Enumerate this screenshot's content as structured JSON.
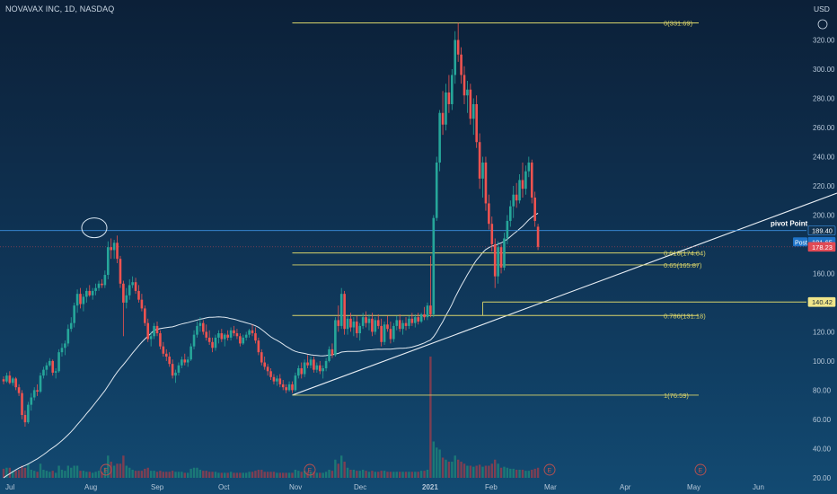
{
  "header": {
    "symbol": "NOVAVAX INC, 1D, NASDAQ",
    "currency": "USD"
  },
  "chart_data": {
    "type": "candlestick",
    "price_axis": {
      "ticks": [
        "320.00",
        "300.00",
        "280.00",
        "260.00",
        "240.00",
        "220.00",
        "200.00",
        "180.00",
        "160.00",
        "140.00",
        "120.00",
        "100.00",
        "80.00",
        "60.00",
        "40.00",
        "20.00"
      ],
      "range": [
        15,
        340
      ]
    },
    "time_axis": {
      "ticks": [
        "Jul",
        "Aug",
        "Sep",
        "Oct",
        "Nov",
        "Dec",
        "2021",
        "Feb",
        "Mar",
        "Apr",
        "May",
        "Jun"
      ]
    },
    "price_badges": [
      {
        "label": "189.40",
        "value": 189.4,
        "kind": "outline"
      },
      {
        "label": "181.65",
        "value": 181.65,
        "kind": "post",
        "prefix": "Post"
      },
      {
        "label": "178.23",
        "value": 178.23,
        "kind": "red"
      },
      {
        "label": "140.42",
        "value": 140.42,
        "kind": "yellow"
      }
    ],
    "fibonacci": [
      {
        "label": "0(331.69)",
        "value": 331.69
      },
      {
        "label": "0.618(174.04)",
        "value": 174.04
      },
      {
        "label": "0.65(165.87)",
        "value": 165.87
      },
      {
        "label": "0.786(131.18)",
        "value": 131.18
      },
      {
        "label": "1(76.59)",
        "value": 76.59
      }
    ],
    "annotations": [
      {
        "label": "pivot Point",
        "value": 189.4
      }
    ],
    "event_markers": [
      "E",
      "E",
      "E",
      "E"
    ],
    "candles": [
      {
        "o": 87.5,
        "h": 89.5,
        "l": 84,
        "c": 86,
        "v": 4.5
      },
      {
        "o": 86,
        "h": 92,
        "l": 85,
        "c": 90,
        "v": 5
      },
      {
        "o": 90,
        "h": 93,
        "l": 84,
        "c": 85,
        "v": 5
      },
      {
        "o": 85,
        "h": 89,
        "l": 83,
        "c": 88,
        "v": 3.5
      },
      {
        "o": 88,
        "h": 89,
        "l": 80,
        "c": 82,
        "v": 3.5
      },
      {
        "o": 82,
        "h": 84,
        "l": 76,
        "c": 78,
        "v": 4
      },
      {
        "o": 78,
        "h": 80,
        "l": 60,
        "c": 63,
        "v": 6
      },
      {
        "o": 63,
        "h": 66,
        "l": 55,
        "c": 58,
        "v": 5
      },
      {
        "o": 58,
        "h": 72,
        "l": 57,
        "c": 70,
        "v": 7
      },
      {
        "o": 70,
        "h": 78,
        "l": 66,
        "c": 75,
        "v": 4
      },
      {
        "o": 75,
        "h": 82,
        "l": 73,
        "c": 80,
        "v": 3.5
      },
      {
        "o": 80,
        "h": 84,
        "l": 76,
        "c": 79,
        "v": 3
      },
      {
        "o": 79,
        "h": 92,
        "l": 78,
        "c": 90,
        "v": 7
      },
      {
        "o": 90,
        "h": 96,
        "l": 88,
        "c": 94,
        "v": 4
      },
      {
        "o": 94,
        "h": 99,
        "l": 90,
        "c": 97,
        "v": 3.5
      },
      {
        "o": 97,
        "h": 102,
        "l": 96,
        "c": 100,
        "v": 3
      },
      {
        "o": 100,
        "h": 101,
        "l": 90,
        "c": 92,
        "v": 3.5
      },
      {
        "o": 92,
        "h": 95,
        "l": 88,
        "c": 93,
        "v": 2.5
      },
      {
        "o": 93,
        "h": 108,
        "l": 92,
        "c": 106,
        "v": 6
      },
      {
        "o": 106,
        "h": 112,
        "l": 103,
        "c": 109,
        "v": 4
      },
      {
        "o": 109,
        "h": 114,
        "l": 104,
        "c": 112,
        "v": 3.5
      },
      {
        "o": 112,
        "h": 125,
        "l": 110,
        "c": 122,
        "v": 6
      },
      {
        "o": 122,
        "h": 130,
        "l": 120,
        "c": 126,
        "v": 5
      },
      {
        "o": 126,
        "h": 140,
        "l": 123,
        "c": 138,
        "v": 6
      },
      {
        "o": 138,
        "h": 149,
        "l": 133,
        "c": 146,
        "v": 6
      },
      {
        "o": 146,
        "h": 150,
        "l": 136,
        "c": 139,
        "v": 3.5
      },
      {
        "o": 139,
        "h": 146,
        "l": 134,
        "c": 144,
        "v": 3.5
      },
      {
        "o": 144,
        "h": 150,
        "l": 140,
        "c": 148,
        "v": 3
      },
      {
        "o": 148,
        "h": 152,
        "l": 144,
        "c": 145,
        "v": 3
      },
      {
        "o": 145,
        "h": 150,
        "l": 142,
        "c": 148,
        "v": 2.5
      },
      {
        "o": 148,
        "h": 153,
        "l": 145,
        "c": 150,
        "v": 3
      },
      {
        "o": 150,
        "h": 155,
        "l": 148,
        "c": 153,
        "v": 3.5
      },
      {
        "o": 153,
        "h": 156,
        "l": 150,
        "c": 152,
        "v": 3
      },
      {
        "o": 152,
        "h": 162,
        "l": 150,
        "c": 159,
        "v": 5
      },
      {
        "o": 159,
        "h": 182,
        "l": 156,
        "c": 178,
        "v": 11
      },
      {
        "o": 178,
        "h": 184,
        "l": 170,
        "c": 176,
        "v": 8
      },
      {
        "o": 176,
        "h": 183,
        "l": 170,
        "c": 181,
        "v": 6
      },
      {
        "o": 181,
        "h": 186,
        "l": 167,
        "c": 170,
        "v": 7
      },
      {
        "o": 170,
        "h": 172,
        "l": 150,
        "c": 153,
        "v": 7
      },
      {
        "o": 153,
        "h": 155,
        "l": 117,
        "c": 140,
        "v": 11
      },
      {
        "o": 140,
        "h": 150,
        "l": 136,
        "c": 145,
        "v": 6
      },
      {
        "o": 145,
        "h": 156,
        "l": 142,
        "c": 152,
        "v": 5
      },
      {
        "o": 152,
        "h": 158,
        "l": 150,
        "c": 154,
        "v": 4
      },
      {
        "o": 154,
        "h": 157,
        "l": 146,
        "c": 148,
        "v": 3.5
      },
      {
        "o": 148,
        "h": 152,
        "l": 140,
        "c": 142,
        "v": 3.5
      },
      {
        "o": 142,
        "h": 146,
        "l": 134,
        "c": 136,
        "v": 3.5
      },
      {
        "o": 136,
        "h": 138,
        "l": 124,
        "c": 126,
        "v": 4.5
      },
      {
        "o": 126,
        "h": 129,
        "l": 113,
        "c": 115,
        "v": 5
      },
      {
        "o": 115,
        "h": 120,
        "l": 110,
        "c": 117,
        "v": 3.5
      },
      {
        "o": 117,
        "h": 126,
        "l": 115,
        "c": 124,
        "v": 3.5
      },
      {
        "o": 124,
        "h": 127,
        "l": 117,
        "c": 119,
        "v": 3
      },
      {
        "o": 119,
        "h": 121,
        "l": 108,
        "c": 110,
        "v": 3.5
      },
      {
        "o": 110,
        "h": 113,
        "l": 103,
        "c": 105,
        "v": 3
      },
      {
        "o": 105,
        "h": 108,
        "l": 100,
        "c": 103,
        "v": 3
      },
      {
        "o": 103,
        "h": 106,
        "l": 96,
        "c": 98,
        "v": 3
      },
      {
        "o": 98,
        "h": 101,
        "l": 88,
        "c": 90,
        "v": 3.5
      },
      {
        "o": 90,
        "h": 94,
        "l": 85,
        "c": 92,
        "v": 3
      },
      {
        "o": 92,
        "h": 99,
        "l": 90,
        "c": 97,
        "v": 3
      },
      {
        "o": 97,
        "h": 103,
        "l": 95,
        "c": 101,
        "v": 3
      },
      {
        "o": 101,
        "h": 105,
        "l": 97,
        "c": 99,
        "v": 2.5
      },
      {
        "o": 99,
        "h": 103,
        "l": 96,
        "c": 101,
        "v": 2.5
      },
      {
        "o": 101,
        "h": 112,
        "l": 100,
        "c": 110,
        "v": 4.5
      },
      {
        "o": 110,
        "h": 121,
        "l": 108,
        "c": 118,
        "v": 5
      },
      {
        "o": 118,
        "h": 127,
        "l": 116,
        "c": 124,
        "v": 5
      },
      {
        "o": 124,
        "h": 130,
        "l": 120,
        "c": 126,
        "v": 4
      },
      {
        "o": 126,
        "h": 128,
        "l": 118,
        "c": 120,
        "v": 3.5
      },
      {
        "o": 120,
        "h": 125,
        "l": 114,
        "c": 116,
        "v": 3.5
      },
      {
        "o": 116,
        "h": 121,
        "l": 111,
        "c": 113,
        "v": 3
      },
      {
        "o": 113,
        "h": 116,
        "l": 106,
        "c": 109,
        "v": 3
      },
      {
        "o": 109,
        "h": 118,
        "l": 107,
        "c": 116,
        "v": 3
      },
      {
        "o": 116,
        "h": 121,
        "l": 112,
        "c": 119,
        "v": 2.5
      },
      {
        "o": 119,
        "h": 122,
        "l": 113,
        "c": 115,
        "v": 2.5
      },
      {
        "o": 115,
        "h": 119,
        "l": 110,
        "c": 118,
        "v": 2.5
      },
      {
        "o": 118,
        "h": 121,
        "l": 114,
        "c": 116,
        "v": 2.5
      },
      {
        "o": 116,
        "h": 123,
        "l": 114,
        "c": 121,
        "v": 3
      },
      {
        "o": 121,
        "h": 124,
        "l": 117,
        "c": 119,
        "v": 2.5
      },
      {
        "o": 119,
        "h": 122,
        "l": 115,
        "c": 117,
        "v": 2.5
      },
      {
        "o": 117,
        "h": 119,
        "l": 110,
        "c": 112,
        "v": 2.5
      },
      {
        "o": 112,
        "h": 118,
        "l": 111,
        "c": 116,
        "v": 2.5
      },
      {
        "o": 116,
        "h": 120,
        "l": 114,
        "c": 118,
        "v": 2.5
      },
      {
        "o": 118,
        "h": 122,
        "l": 116,
        "c": 121,
        "v": 3
      },
      {
        "o": 121,
        "h": 125,
        "l": 117,
        "c": 119,
        "v": 3
      },
      {
        "o": 119,
        "h": 123,
        "l": 112,
        "c": 114,
        "v": 3.5
      },
      {
        "o": 114,
        "h": 116,
        "l": 104,
        "c": 106,
        "v": 4
      },
      {
        "o": 106,
        "h": 108,
        "l": 97,
        "c": 99,
        "v": 4
      },
      {
        "o": 99,
        "h": 103,
        "l": 94,
        "c": 96,
        "v": 3
      },
      {
        "o": 96,
        "h": 98,
        "l": 90,
        "c": 93,
        "v": 3
      },
      {
        "o": 93,
        "h": 95,
        "l": 87,
        "c": 89,
        "v": 3
      },
      {
        "o": 89,
        "h": 91,
        "l": 84,
        "c": 86,
        "v": 3
      },
      {
        "o": 86,
        "h": 90,
        "l": 83,
        "c": 88,
        "v": 2.5
      },
      {
        "o": 88,
        "h": 91,
        "l": 82,
        "c": 84,
        "v": 2.5
      },
      {
        "o": 84,
        "h": 87,
        "l": 80,
        "c": 82,
        "v": 2.5
      },
      {
        "o": 82,
        "h": 84,
        "l": 78,
        "c": 80,
        "v": 2.5
      },
      {
        "o": 80,
        "h": 86,
        "l": 79,
        "c": 84,
        "v": 2.5
      },
      {
        "o": 84,
        "h": 86,
        "l": 78,
        "c": 80,
        "v": 2.5
      },
      {
        "o": 80,
        "h": 92,
        "l": 79,
        "c": 90,
        "v": 4
      },
      {
        "o": 90,
        "h": 97,
        "l": 88,
        "c": 95,
        "v": 3.5
      },
      {
        "o": 95,
        "h": 99,
        "l": 88,
        "c": 91,
        "v": 3
      },
      {
        "o": 91,
        "h": 101,
        "l": 89,
        "c": 99,
        "v": 3.5
      },
      {
        "o": 99,
        "h": 104,
        "l": 95,
        "c": 97,
        "v": 3
      },
      {
        "o": 97,
        "h": 103,
        "l": 95,
        "c": 101,
        "v": 3
      },
      {
        "o": 101,
        "h": 103,
        "l": 92,
        "c": 94,
        "v": 3
      },
      {
        "o": 94,
        "h": 99,
        "l": 92,
        "c": 97,
        "v": 2.5
      },
      {
        "o": 97,
        "h": 100,
        "l": 91,
        "c": 93,
        "v": 2.5
      },
      {
        "o": 93,
        "h": 97,
        "l": 88,
        "c": 95,
        "v": 2.5
      },
      {
        "o": 95,
        "h": 102,
        "l": 93,
        "c": 100,
        "v": 3
      },
      {
        "o": 100,
        "h": 110,
        "l": 99,
        "c": 108,
        "v": 4
      },
      {
        "o": 108,
        "h": 112,
        "l": 102,
        "c": 104,
        "v": 3.5
      },
      {
        "o": 104,
        "h": 130,
        "l": 103,
        "c": 128,
        "v": 9
      },
      {
        "o": 128,
        "h": 138,
        "l": 120,
        "c": 124,
        "v": 7
      },
      {
        "o": 124,
        "h": 150,
        "l": 122,
        "c": 146,
        "v": 11
      },
      {
        "o": 146,
        "h": 148,
        "l": 118,
        "c": 122,
        "v": 8
      },
      {
        "o": 122,
        "h": 131,
        "l": 118,
        "c": 129,
        "v": 5
      },
      {
        "o": 129,
        "h": 133,
        "l": 120,
        "c": 123,
        "v": 4
      },
      {
        "o": 123,
        "h": 130,
        "l": 117,
        "c": 127,
        "v": 4
      },
      {
        "o": 127,
        "h": 131,
        "l": 116,
        "c": 119,
        "v": 3.5
      },
      {
        "o": 119,
        "h": 126,
        "l": 114,
        "c": 124,
        "v": 3.5
      },
      {
        "o": 124,
        "h": 133,
        "l": 122,
        "c": 130,
        "v": 4
      },
      {
        "o": 130,
        "h": 134,
        "l": 123,
        "c": 126,
        "v": 3.5
      },
      {
        "o": 126,
        "h": 132,
        "l": 121,
        "c": 129,
        "v": 3
      },
      {
        "o": 129,
        "h": 133,
        "l": 117,
        "c": 120,
        "v": 3.5
      },
      {
        "o": 120,
        "h": 130,
        "l": 118,
        "c": 128,
        "v": 3
      },
      {
        "o": 128,
        "h": 132,
        "l": 122,
        "c": 124,
        "v": 3
      },
      {
        "o": 124,
        "h": 129,
        "l": 110,
        "c": 113,
        "v": 3.5
      },
      {
        "o": 113,
        "h": 127,
        "l": 111,
        "c": 125,
        "v": 3.5
      },
      {
        "o": 125,
        "h": 131,
        "l": 120,
        "c": 122,
        "v": 3
      },
      {
        "o": 122,
        "h": 127,
        "l": 112,
        "c": 115,
        "v": 3
      },
      {
        "o": 115,
        "h": 126,
        "l": 113,
        "c": 124,
        "v": 3
      },
      {
        "o": 124,
        "h": 131,
        "l": 121,
        "c": 128,
        "v": 3
      },
      {
        "o": 128,
        "h": 132,
        "l": 120,
        "c": 122,
        "v": 3
      },
      {
        "o": 122,
        "h": 128,
        "l": 118,
        "c": 126,
        "v": 3
      },
      {
        "o": 126,
        "h": 130,
        "l": 121,
        "c": 124,
        "v": 3
      },
      {
        "o": 124,
        "h": 131,
        "l": 122,
        "c": 129,
        "v": 3
      },
      {
        "o": 129,
        "h": 133,
        "l": 124,
        "c": 126,
        "v": 3
      },
      {
        "o": 126,
        "h": 132,
        "l": 123,
        "c": 130,
        "v": 3
      },
      {
        "o": 130,
        "h": 133,
        "l": 125,
        "c": 127,
        "v": 3
      },
      {
        "o": 127,
        "h": 133,
        "l": 126,
        "c": 132,
        "v": 3.5
      },
      {
        "o": 132,
        "h": 137,
        "l": 128,
        "c": 130,
        "v": 3.5
      },
      {
        "o": 130,
        "h": 140,
        "l": 128,
        "c": 138,
        "v": 4
      },
      {
        "o": 138,
        "h": 172,
        "l": 130,
        "c": 132,
        "v": 60
      },
      {
        "o": 132,
        "h": 200,
        "l": 130,
        "c": 198,
        "v": 18
      },
      {
        "o": 198,
        "h": 240,
        "l": 196,
        "c": 236,
        "v": 15
      },
      {
        "o": 236,
        "h": 272,
        "l": 230,
        "c": 270,
        "v": 14
      },
      {
        "o": 270,
        "h": 285,
        "l": 255,
        "c": 262,
        "v": 10
      },
      {
        "o": 262,
        "h": 290,
        "l": 258,
        "c": 284,
        "v": 9
      },
      {
        "o": 284,
        "h": 296,
        "l": 270,
        "c": 276,
        "v": 8
      },
      {
        "o": 276,
        "h": 300,
        "l": 272,
        "c": 296,
        "v": 8
      },
      {
        "o": 296,
        "h": 326,
        "l": 290,
        "c": 320,
        "v": 11
      },
      {
        "o": 320,
        "h": 331.69,
        "l": 305,
        "c": 310,
        "v": 9
      },
      {
        "o": 310,
        "h": 315,
        "l": 290,
        "c": 296,
        "v": 8
      },
      {
        "o": 296,
        "h": 302,
        "l": 276,
        "c": 282,
        "v": 7
      },
      {
        "o": 282,
        "h": 292,
        "l": 270,
        "c": 286,
        "v": 6
      },
      {
        "o": 286,
        "h": 290,
        "l": 262,
        "c": 266,
        "v": 6
      },
      {
        "o": 266,
        "h": 280,
        "l": 255,
        "c": 276,
        "v": 5.5
      },
      {
        "o": 276,
        "h": 282,
        "l": 246,
        "c": 250,
        "v": 6
      },
      {
        "o": 250,
        "h": 256,
        "l": 218,
        "c": 225,
        "v": 6.5
      },
      {
        "o": 225,
        "h": 240,
        "l": 212,
        "c": 236,
        "v": 5.5
      },
      {
        "o": 236,
        "h": 240,
        "l": 203,
        "c": 208,
        "v": 6
      },
      {
        "o": 208,
        "h": 214,
        "l": 190,
        "c": 194,
        "v": 6
      },
      {
        "o": 194,
        "h": 199,
        "l": 175,
        "c": 180,
        "v": 7
      },
      {
        "o": 180,
        "h": 184,
        "l": 150,
        "c": 158,
        "v": 9
      },
      {
        "o": 158,
        "h": 182,
        "l": 153,
        "c": 178,
        "v": 7
      },
      {
        "o": 178,
        "h": 180,
        "l": 160,
        "c": 164,
        "v": 5
      },
      {
        "o": 164,
        "h": 188,
        "l": 162,
        "c": 184,
        "v": 5.5
      },
      {
        "o": 184,
        "h": 200,
        "l": 180,
        "c": 196,
        "v": 5
      },
      {
        "o": 196,
        "h": 210,
        "l": 192,
        "c": 206,
        "v": 4.5
      },
      {
        "o": 206,
        "h": 220,
        "l": 198,
        "c": 214,
        "v": 4.5
      },
      {
        "o": 214,
        "h": 222,
        "l": 205,
        "c": 210,
        "v": 4
      },
      {
        "o": 210,
        "h": 228,
        "l": 208,
        "c": 224,
        "v": 4
      },
      {
        "o": 224,
        "h": 236,
        "l": 212,
        "c": 218,
        "v": 4
      },
      {
        "o": 218,
        "h": 234,
        "l": 214,
        "c": 230,
        "v": 3.5
      },
      {
        "o": 230,
        "h": 240,
        "l": 226,
        "c": 236,
        "v": 3.5
      },
      {
        "o": 236,
        "h": 238,
        "l": 208,
        "c": 212,
        "v": 4
      },
      {
        "o": 212,
        "h": 216,
        "l": 192,
        "c": 196,
        "v": 4.5
      },
      {
        "o": 192,
        "h": 194,
        "l": 176,
        "c": 178.23,
        "v": 5
      }
    ]
  }
}
